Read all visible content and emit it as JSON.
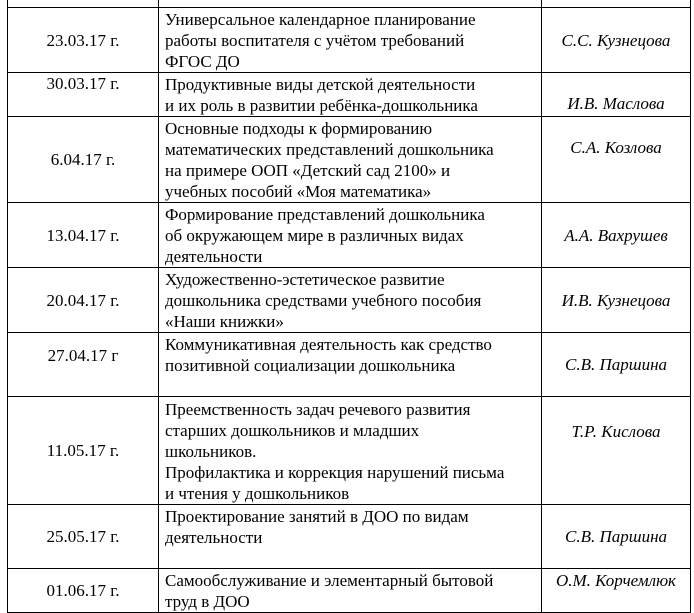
{
  "rows": [
    {
      "date": "23.03.17 г.",
      "topic": "Универсальное календарное планирование\nработы воспитателя  с учётом требований\nФГОС ДО",
      "author": "С.С. Кузнецова"
    },
    {
      "date": "30.03.17 г.",
      "topic": "Продуктивные виды детской деятельности\n и их роль в  развитии ребёнка-дошкольника",
      "author": "И.В. Маслова"
    },
    {
      "date": "6.04.17 г.",
      "topic": "Основные подходы к формированию\nматематических представлений дошкольника\nна примере ООП «Детский сад 2100» и\nучебных пособий «Моя математика»",
      "author": "С.А. Козлова"
    },
    {
      "date": "13.04.17 г.",
      "topic": "Формирование представлений дошкольника\nоб окружающем мире в различных видах\nдеятельности",
      "author": "А.А. Вахрушев"
    },
    {
      "date": "20.04.17 г.",
      "topic": " Художественно-эстетическое развитие\nдошкольника средствами учебного пособия\n«Наши книжки»",
      "author": "И.В. Кузнецова"
    },
    {
      "date": "27.04.17 г",
      "topic": "Коммуникативная  деятельность  как  средство\nпозитивной социализации дошкольника",
      "author": "С.В. Паршина"
    },
    {
      "date": "11.05.17 г.",
      "topic": "Преемственность задач речевого развития\nстарших дошкольников и младших\nшкольников.\nПрофилактика и коррекция нарушений письма\nи чтения у дошкольников",
      "author": "Т.Р. Кислова"
    },
    {
      "date": "25.05.17 г.",
      "topic": "Проектирование занятий в ДОО по видам\nдеятельности",
      "author": "С.В. Паршина"
    },
    {
      "date": "01.06.17 г.",
      "topic": "Самообслуживание и элементарный бытовой\nтруд в ДОО",
      "author": "О.М. Корчемлюк"
    }
  ]
}
